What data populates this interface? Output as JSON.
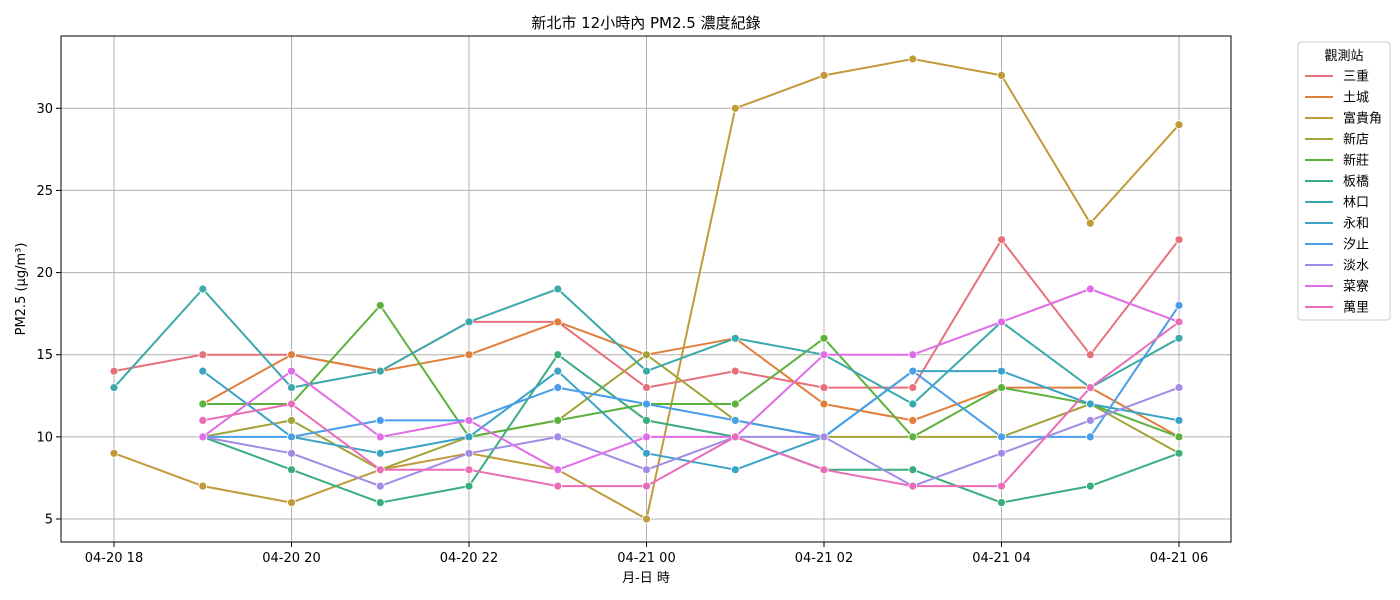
{
  "chart_data": {
    "type": "line",
    "title": "新北市 12小時內 PM2.5 濃度紀錄",
    "xlabel": "月-日 時",
    "ylabel": "PM2.5 (μg/m³)",
    "x": [
      "04-20 18",
      "04-20 19",
      "04-20 20",
      "04-20 21",
      "04-20 22",
      "04-20 23",
      "04-21 00",
      "04-21 01",
      "04-21 02",
      "04-21 03",
      "04-21 04",
      "04-21 05",
      "04-21 06"
    ],
    "xticks": [
      "04-20 18",
      "04-20 20",
      "04-20 22",
      "04-21 00",
      "04-21 02",
      "04-21 04",
      "04-21 06"
    ],
    "yticks": [
      5,
      10,
      15,
      20,
      25,
      30
    ],
    "ylim": [
      3.6,
      34.4
    ],
    "grid": true,
    "legend": {
      "title": "觀測站",
      "placement": "outside-right"
    },
    "series": [
      {
        "name": "三重",
        "color": "#e8707a",
        "values": [
          14,
          15,
          15,
          14,
          17,
          17,
          13,
          14,
          13,
          13,
          22,
          15,
          22
        ]
      },
      {
        "name": "土城",
        "color": "#e07e3c",
        "values": [
          null,
          12,
          15,
          14,
          15,
          17,
          15,
          16,
          12,
          11,
          13,
          13,
          10
        ]
      },
      {
        "name": "富貴角",
        "color": "#c19a3a",
        "values": [
          9,
          7,
          6,
          8,
          9,
          8,
          5,
          30,
          32,
          33,
          32,
          23,
          29
        ]
      },
      {
        "name": "新店",
        "color": "#a3a33a",
        "values": [
          null,
          10,
          11,
          8,
          10,
          11,
          15,
          11,
          10,
          10,
          10,
          12,
          9
        ]
      },
      {
        "name": "新莊",
        "color": "#5cb23d",
        "values": [
          null,
          12,
          12,
          18,
          10,
          11,
          12,
          12,
          16,
          10,
          13,
          12,
          10
        ]
      },
      {
        "name": "板橋",
        "color": "#3aad7d",
        "values": [
          null,
          10,
          8,
          6,
          7,
          15,
          11,
          10,
          8,
          8,
          6,
          7,
          9
        ]
      },
      {
        "name": "林口",
        "color": "#3ba9a9",
        "values": [
          13,
          19,
          13,
          14,
          17,
          19,
          14,
          16,
          15,
          12,
          17,
          13,
          16
        ]
      },
      {
        "name": "永和",
        "color": "#3aa3c6",
        "values": [
          null,
          14,
          10,
          9,
          10,
          14,
          9,
          8,
          10,
          14,
          14,
          12,
          11
        ]
      },
      {
        "name": "汐止",
        "color": "#4a9ee8",
        "values": [
          null,
          10,
          10,
          11,
          11,
          13,
          12,
          11,
          10,
          14,
          10,
          10,
          18
        ]
      },
      {
        "name": "淡水",
        "color": "#a28be6",
        "values": [
          null,
          10,
          9,
          7,
          9,
          10,
          8,
          10,
          10,
          7,
          9,
          11,
          13
        ]
      },
      {
        "name": "菜寮",
        "color": "#e06ce8",
        "values": [
          null,
          10,
          14,
          10,
          11,
          8,
          10,
          10,
          15,
          15,
          17,
          19,
          17
        ]
      },
      {
        "name": "萬里",
        "color": "#ea6cb8",
        "values": [
          null,
          11,
          12,
          8,
          8,
          7,
          7,
          10,
          8,
          7,
          7,
          13,
          17
        ]
      }
    ]
  }
}
